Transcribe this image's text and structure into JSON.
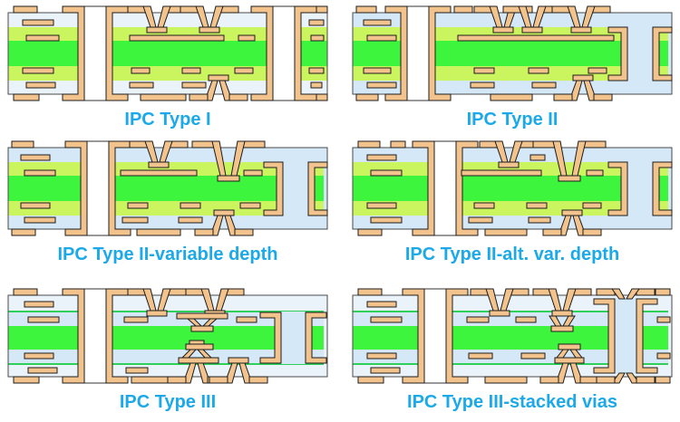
{
  "page": {
    "background": "#FFFFFF"
  },
  "colors": {
    "copper": "#F3C38D",
    "copper_outline": "#1C1C1C",
    "core_green": "#3CF53C",
    "prepreg_green": "#CBF55F",
    "pale_blue": "#EBF3FA",
    "light_blue": "#D4E8F8",
    "hole_white": "#FFFFFF",
    "hole_outline": "#333333",
    "board_outline": "#4A4A4A",
    "line_green": "#2FD05A",
    "label_color": "#1BA9E9"
  },
  "panels": [
    {
      "id": "ipc-type-i",
      "label": "IPC Type I"
    },
    {
      "id": "ipc-type-ii",
      "label": "IPC Type II"
    },
    {
      "id": "ipc-type-ii-variable-depth",
      "label": "IPC Type II-variable depth"
    },
    {
      "id": "ipc-type-ii-alt-var-depth",
      "label": "IPC Type II-alt. var. depth"
    },
    {
      "id": "ipc-type-iii",
      "label": "IPC Type III"
    },
    {
      "id": "ipc-type-iii-stacked-vias",
      "label": "IPC Type III-stacked vias"
    }
  ]
}
